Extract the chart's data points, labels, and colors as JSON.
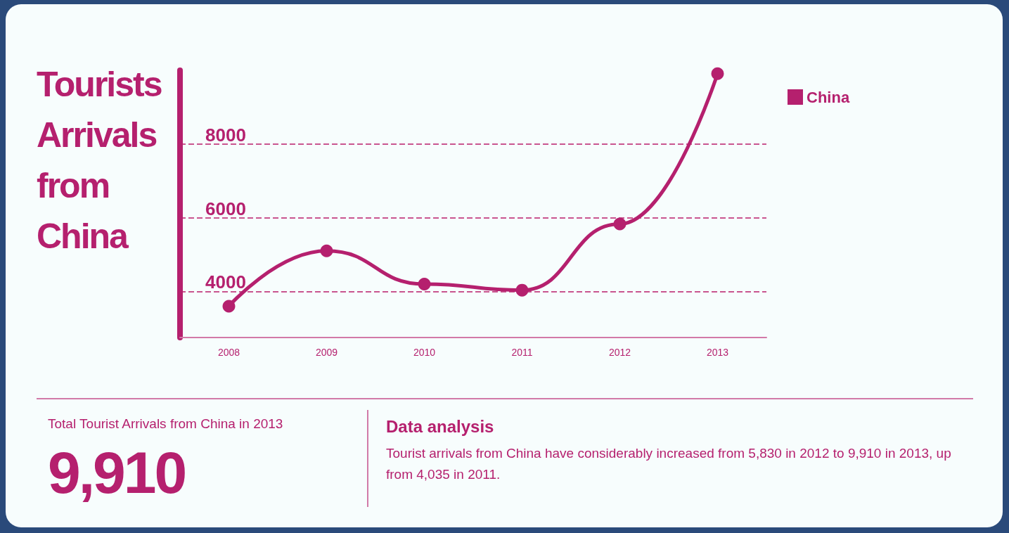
{
  "chart_data": {
    "type": "line",
    "title": "Tourists Arrivals from China",
    "categories": [
      "2008",
      "2009",
      "2010",
      "2011",
      "2012",
      "2013"
    ],
    "series": [
      {
        "name": "China",
        "color": "#b5206e",
        "values": [
          3600,
          5100,
          4200,
          4035,
          5830,
          9910
        ]
      }
    ],
    "ylim": [
      2750,
      10000
    ],
    "yticks": [
      4000,
      6000,
      8000
    ],
    "grid": "y",
    "legend": "top right",
    "marker": "circle",
    "line_style": "solid",
    "annotations": [
      "Total Tourist Arrivals from China in 2013",
      "9,910",
      "Data analysis",
      "Tourist arrivals from China have considerably increased from 5,830 in 2012 to 9,910 in 2013, up from 4,035 in 2011."
    ]
  }
}
